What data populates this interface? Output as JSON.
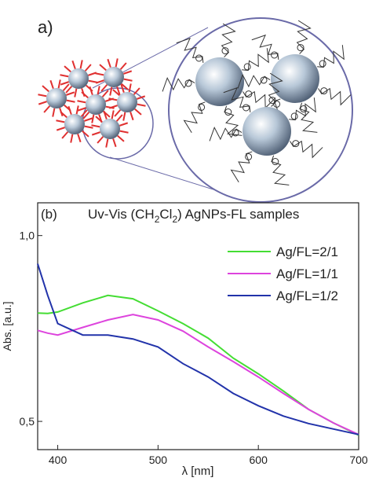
{
  "figure_a": {
    "label": "a)"
  },
  "chart_data": {
    "type": "line",
    "panel_label": "(b)",
    "title": [
      "Uv-Vis (CH",
      "2",
      "Cl",
      "2",
      ")  AgNPs-FL samples"
    ],
    "x_label": "λ [nm]",
    "y_label": "Abs. [a.u.]",
    "x": [
      380,
      390,
      400,
      425,
      450,
      475,
      500,
      525,
      550,
      575,
      600,
      625,
      650,
      675,
      700
    ],
    "series": [
      {
        "name": "Ag/FL=2/1",
        "color": "#44dd33",
        "values": [
          0.749,
          0.748,
          0.752,
          0.778,
          0.8,
          0.79,
          0.755,
          0.72,
          0.682,
          0.633,
          0.597,
          0.56,
          0.523,
          0.497,
          0.475
        ]
      },
      {
        "name": "Ag/FL=1/1",
        "color": "#dd44dd",
        "values": [
          0.702,
          0.695,
          0.69,
          0.71,
          0.73,
          0.745,
          0.73,
          0.7,
          0.66,
          0.625,
          0.59,
          0.555,
          0.523,
          0.497,
          0.476
        ]
      },
      {
        "name": "Ag/FL=1/2",
        "color": "#2233aa",
        "values": [
          0.9,
          0.8,
          0.72,
          0.69,
          0.69,
          0.68,
          0.66,
          0.62,
          0.59,
          0.555,
          0.53,
          0.51,
          0.496,
          0.486,
          0.476
        ]
      }
    ],
    "xlim": [
      380,
      700
    ],
    "xticks": [
      400,
      500,
      600,
      700
    ],
    "ylim": [
      0.45,
      1.13
    ],
    "yscale": "log",
    "yticks": [
      {
        "value": 0.5,
        "label": "0,5"
      },
      {
        "value": 1,
        "label": "1,0"
      }
    ],
    "legend": "upper-right"
  }
}
